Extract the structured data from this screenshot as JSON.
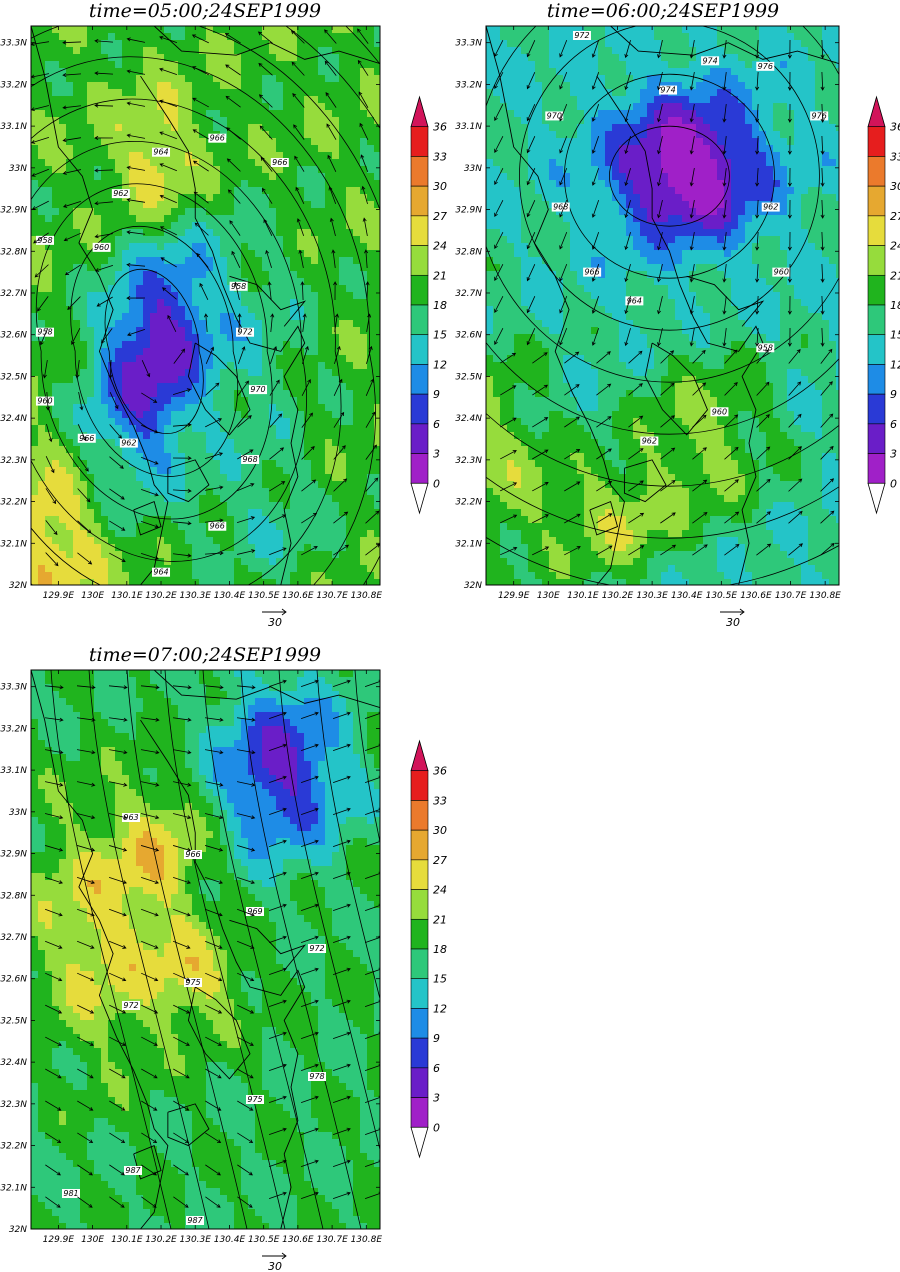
{
  "colorbar": {
    "levels": [
      0,
      3,
      6,
      9,
      12,
      15,
      18,
      21,
      24,
      27,
      30,
      33,
      36
    ],
    "labels": [
      "0",
      "3",
      "6",
      "9",
      "12",
      "15",
      "18",
      "21",
      "24",
      "27",
      "30",
      "33",
      "36"
    ],
    "colors": [
      "#ffffff",
      "#a020c8",
      "#6a1ec8",
      "#2a3ad6",
      "#1e8ce6",
      "#24c4c8",
      "#2ec87a",
      "#20b41e",
      "#96dc3c",
      "#e6dc3c",
      "#e6a830",
      "#eb7a2c",
      "#e61e1e",
      "#d2145a"
    ]
  },
  "axes": {
    "x_ticks": [
      "129.9E",
      "130E",
      "130.1E",
      "130.2E",
      "130.3E",
      "130.4E",
      "130.5E",
      "130.6E",
      "130.7E",
      "130.8E"
    ],
    "y_ticks": [
      "32N",
      "32.1N",
      "32.2N",
      "32.3N",
      "32.4N",
      "32.5N",
      "32.6N",
      "32.7N",
      "32.8N",
      "32.9N",
      "33N",
      "33.1N",
      "33.2N",
      "33.3N"
    ]
  },
  "reference_vector": {
    "label": "30"
  },
  "panels": [
    {
      "title": "time=05:00;24SEP1999",
      "isobar_labels": [
        "972",
        "970",
        "968",
        "966",
        "964",
        "962",
        "966",
        "960",
        "958",
        "958",
        "960",
        "962",
        "964",
        "966",
        "966",
        "958"
      ],
      "wind_pattern": "cyclonic-counterclockwise",
      "background_speed": 20,
      "blobs": [
        {
          "x": 130.18,
          "y": 32.55,
          "sx": 0.12,
          "sy": 0.22,
          "a": -16
        },
        {
          "x": 130.2,
          "y": 33.0,
          "sx": 0.09,
          "sy": 0.12,
          "a": 6
        },
        {
          "x": 129.88,
          "y": 32.1,
          "sx": 0.12,
          "sy": 0.15,
          "a": 4
        },
        {
          "x": 130.5,
          "y": 32.55,
          "sx": 0.12,
          "sy": 0.2,
          "a": -3
        },
        {
          "x": 130.5,
          "y": 32.15,
          "sx": 0.15,
          "sy": 0.1,
          "a": -5
        }
      ]
    },
    {
      "title": "time=06:00;24SEP1999",
      "isobar_labels": [
        "962",
        "960",
        "958",
        "960",
        "962",
        "964",
        "966",
        "968",
        "970",
        "972",
        "974",
        "974",
        "976",
        "976"
      ],
      "wind_pattern": "northerly-to-northeasterly",
      "background_speed": 15,
      "blobs": [
        {
          "x": 130.4,
          "y": 33.0,
          "sx": 0.15,
          "sy": 0.12,
          "a": -3
        },
        {
          "x": 129.85,
          "y": 32.3,
          "sx": 0.14,
          "sy": 0.22,
          "a": 22
        },
        {
          "x": 130.45,
          "y": 32.35,
          "sx": 0.15,
          "sy": 0.15,
          "a": 4
        },
        {
          "x": 130.2,
          "y": 32.15,
          "sx": 0.12,
          "sy": 0.1,
          "a": 3
        }
      ]
    },
    {
      "title": "time=07:00;24SEP1999",
      "isobar_labels": [
        "963",
        "966",
        "969",
        "972",
        "972",
        "975",
        "975",
        "978",
        "981",
        "987",
        "987"
      ],
      "wind_pattern": "westerly-to-northwesterly",
      "background_speed": 18,
      "blobs": [
        {
          "x": 130.55,
          "y": 33.1,
          "sx": 0.13,
          "sy": 0.14,
          "a": 0
        },
        {
          "x": 130.0,
          "y": 32.7,
          "sx": 0.13,
          "sy": 0.2,
          "a": 12
        },
        {
          "x": 130.3,
          "y": 32.6,
          "sx": 0.1,
          "sy": 0.08,
          "a": 0
        },
        {
          "x": 130.2,
          "y": 32.9,
          "sx": 0.1,
          "sy": 0.12,
          "a": 0
        }
      ]
    }
  ]
}
